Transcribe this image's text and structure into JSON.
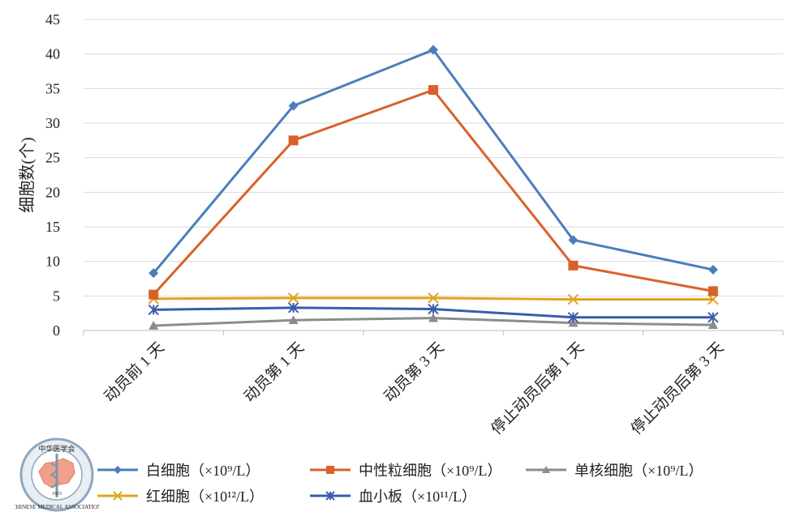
{
  "chart_data": {
    "type": "line",
    "title": "",
    "xlabel": "",
    "ylabel": "细胞数(个)",
    "ylim": [
      0,
      45
    ],
    "yticks": [
      "0",
      "5",
      "10",
      "15",
      "20",
      "25",
      "30",
      "35",
      "40",
      "45"
    ],
    "grid": true,
    "legend_position": "bottom",
    "categories": [
      "动员前 1 天",
      "动员第 1 天",
      "动员第 3 天",
      "停止动员后第 1 天",
      "停止动员后第 3 天"
    ],
    "series": [
      {
        "name": "白细胞（×10⁹/L）",
        "color": "#4a7ebb",
        "marker": "diamond",
        "values": [
          8.3,
          32.5,
          40.6,
          13.1,
          8.8
        ]
      },
      {
        "name": "中性粒细胞（×10⁹/L）",
        "color": "#d9612a",
        "marker": "square",
        "values": [
          5.2,
          27.5,
          34.8,
          9.4,
          5.7
        ]
      },
      {
        "name": "单核细胞（×10⁹/L）",
        "color": "#8c8c8c",
        "marker": "triangle",
        "values": [
          0.7,
          1.5,
          1.8,
          1.1,
          0.8
        ]
      },
      {
        "name": "红细胞（×10¹²/L）",
        "color": "#e0a41f",
        "marker": "x",
        "values": [
          4.6,
          4.7,
          4.7,
          4.5,
          4.5
        ]
      },
      {
        "name": "血小板（×10¹¹/L）",
        "color": "#3a5cad",
        "marker": "star",
        "values": [
          3.0,
          3.3,
          3.1,
          1.9,
          1.9
        ]
      }
    ]
  },
  "logo": {
    "text_top": "中华医学会",
    "text_ring": "CHINESE MEDICAL ASSOCIATION",
    "year": "1915"
  }
}
